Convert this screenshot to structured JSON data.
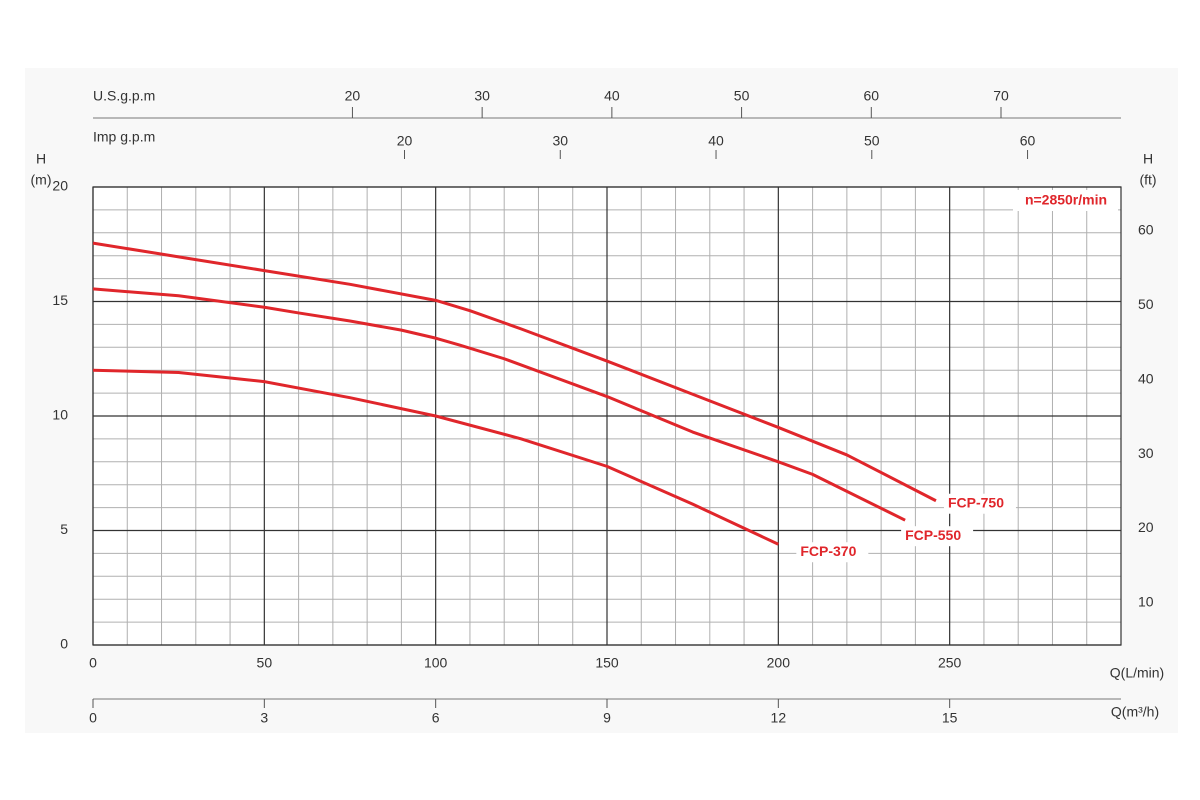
{
  "chart_data": {
    "type": "line",
    "ylabel_lines": [
      "H",
      "(m)"
    ],
    "y2label_lines": [
      "H",
      "(ft)"
    ],
    "xlabel": "Q(L/min)",
    "annotation": "n=2850r/min",
    "xlim": [
      0,
      300
    ],
    "xticks": [
      0,
      50,
      100,
      150,
      200,
      250
    ],
    "xminorticks": [
      10,
      20,
      30,
      40,
      60,
      70,
      80,
      90,
      110,
      120,
      130,
      140,
      160,
      170,
      180,
      190,
      210,
      220,
      230,
      240,
      260,
      270,
      280,
      290
    ],
    "ylim": [
      0,
      20
    ],
    "yticks": [
      0,
      5,
      10,
      15,
      20
    ],
    "yminorticks": [
      1,
      2,
      3,
      4,
      6,
      7,
      8,
      9,
      11,
      12,
      13,
      14,
      16,
      17,
      18,
      19
    ],
    "y2lim": [
      4.35,
      65.9
    ],
    "y2ticks": [
      10,
      20,
      30,
      40,
      50,
      60
    ],
    "grid": true,
    "x_axes": [
      {
        "label": "U.S.g.p.m",
        "lim": [
          0,
          79.25
        ],
        "ticks": [
          20,
          30,
          40,
          50,
          60,
          70
        ]
      },
      {
        "label": "Imp g.p.m",
        "lim": [
          0,
          66
        ],
        "ticks": [
          20,
          30,
          40,
          50,
          60
        ]
      },
      {
        "label": "Q(m³/h)",
        "lim": [
          0,
          18
        ],
        "ticks": [
          0,
          3,
          6,
          9,
          12,
          15
        ]
      }
    ],
    "series": [
      {
        "name": "FCP-750",
        "color": "#e0262b",
        "x": [
          0,
          25,
          50,
          75,
          100,
          110,
          125,
          150,
          175,
          200,
          220,
          246
        ],
        "values": [
          17.55,
          16.95,
          16.35,
          15.75,
          15.05,
          14.6,
          13.8,
          12.4,
          10.95,
          9.5,
          8.3,
          6.3
        ]
      },
      {
        "name": "FCP-550",
        "color": "#e0262b",
        "x": [
          0,
          25,
          50,
          60,
          75,
          90,
          100,
          107,
          120,
          150,
          175,
          200,
          210,
          237
        ],
        "values": [
          15.55,
          15.25,
          14.75,
          14.5,
          14.15,
          13.75,
          13.4,
          13.1,
          12.5,
          10.85,
          9.3,
          8.0,
          7.45,
          5.45
        ]
      },
      {
        "name": "FCP-370",
        "color": "#e0262b",
        "x": [
          0,
          25,
          50,
          75,
          100,
          125,
          150,
          175,
          200
        ],
        "values": [
          12.0,
          11.9,
          11.5,
          10.8,
          10.0,
          9.0,
          7.8,
          6.15,
          4.4
        ]
      }
    ]
  }
}
